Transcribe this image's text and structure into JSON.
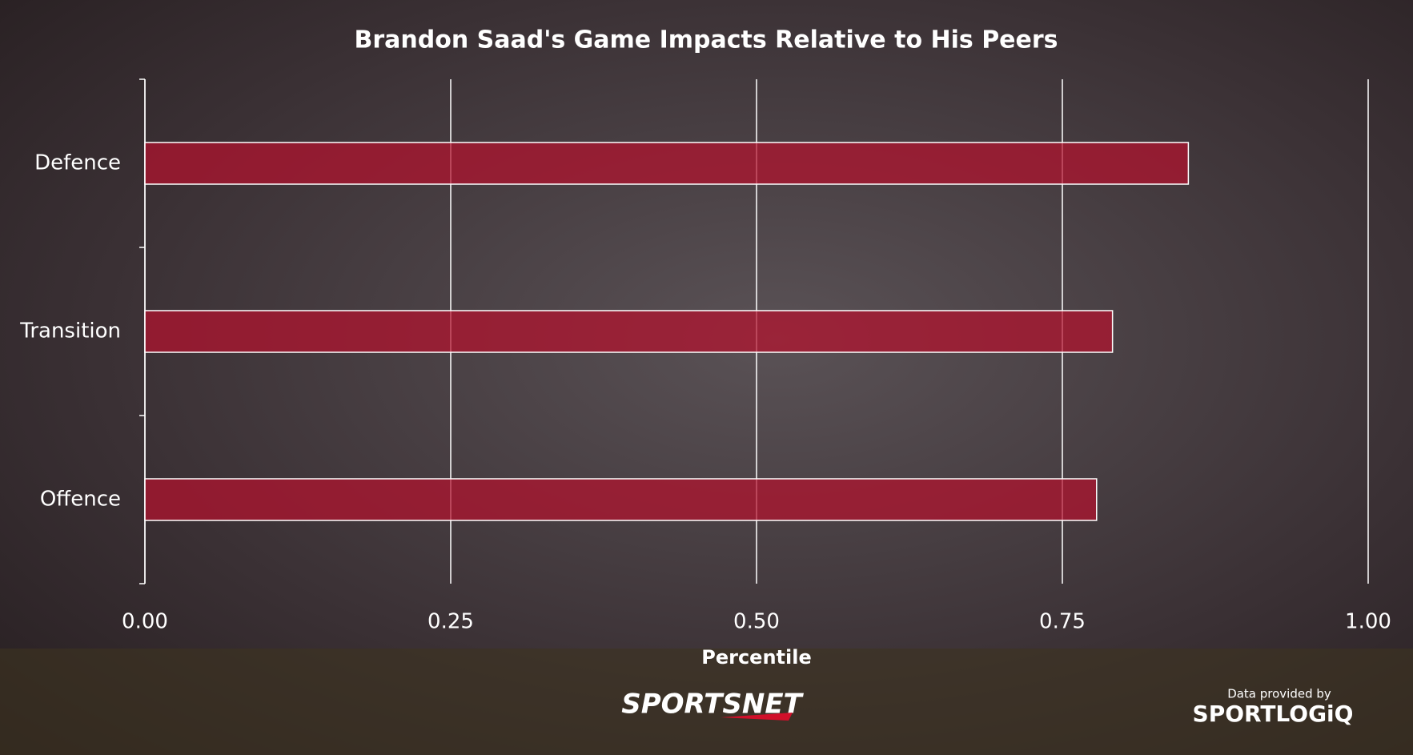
{
  "chart_data": {
    "type": "barh",
    "title": "Brandon Saad's Game Impacts Relative to His Peers",
    "x_label": "Percentile",
    "categories": [
      "Defence",
      "Transition",
      "Offence"
    ],
    "values": [
      0.853,
      0.791,
      0.778
    ],
    "color": "#b3122e",
    "xlim": [
      0,
      1
    ],
    "xticks": [
      {
        "value": 0,
        "label": "0.00"
      },
      0.25,
      {
        "value": 0.5,
        "label": "0.50"
      },
      0.75,
      {
        "value": 1,
        "label": "1.00"
      }
    ],
    "grid": true
  },
  "branding": {
    "broadcaster": "SPORTSNET",
    "credit": "Data provided by",
    "provider": "SPORTLOGiQ"
  }
}
